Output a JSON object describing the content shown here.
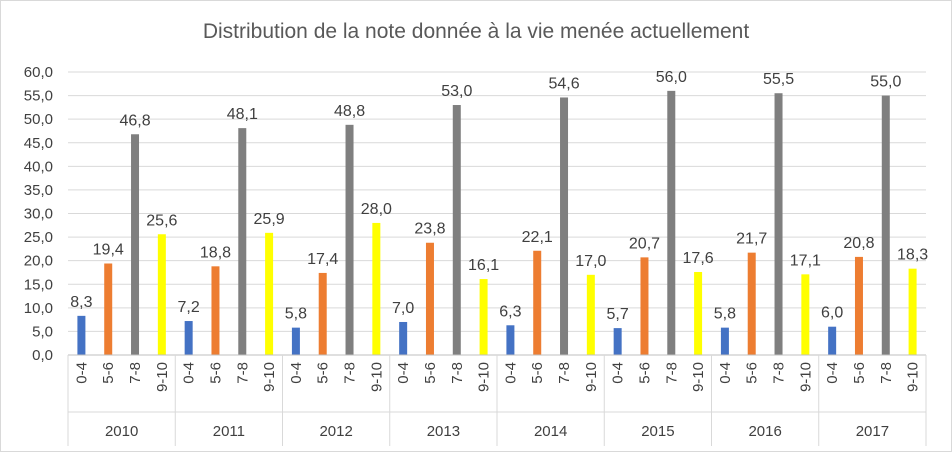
{
  "chart_data": {
    "type": "bar",
    "title": "Distribution de la note donnée à la vie menée actuellement",
    "xlabel": "",
    "ylabel": "",
    "ylim": [
      0,
      60
    ],
    "yticks": [
      "0,0",
      "5,0",
      "10,0",
      "15,0",
      "20,0",
      "25,0",
      "30,0",
      "35,0",
      "40,0",
      "45,0",
      "50,0",
      "55,0",
      "60,0"
    ],
    "grid": true,
    "legend": "none",
    "groups": [
      "2010",
      "2011",
      "2012",
      "2013",
      "2014",
      "2015",
      "2016",
      "2017"
    ],
    "categories": [
      "0-4",
      "5-6",
      "7-8",
      "9-10"
    ],
    "category_colors": [
      "#4472c4",
      "#ed7d31",
      "#7f7f7f",
      "#ffff00"
    ],
    "values": [
      [
        8.3,
        19.4,
        46.8,
        25.6
      ],
      [
        7.2,
        18.8,
        48.1,
        25.9
      ],
      [
        5.8,
        17.4,
        48.8,
        28.0
      ],
      [
        7.0,
        23.8,
        53.0,
        16.1
      ],
      [
        6.3,
        22.1,
        54.6,
        17.0
      ],
      [
        5.7,
        20.7,
        56.0,
        17.6
      ],
      [
        5.8,
        21.7,
        55.5,
        17.1
      ],
      [
        6.0,
        20.8,
        55.0,
        18.3
      ]
    ],
    "value_labels": [
      [
        "8,3",
        "19,4",
        "46,8",
        "25,6"
      ],
      [
        "7,2",
        "18,8",
        "48,1",
        "25,9"
      ],
      [
        "5,8",
        "17,4",
        "48,8",
        "28,0"
      ],
      [
        "7,0",
        "23,8",
        "53,0",
        "16,1"
      ],
      [
        "6,3",
        "22,1",
        "54,6",
        "17,0"
      ],
      [
        "5,7",
        "20,7",
        "56,0",
        "17,6"
      ],
      [
        "5,8",
        "21,7",
        "55,5",
        "17,1"
      ],
      [
        "6,0",
        "20,8",
        "55,0",
        "18,3"
      ]
    ]
  }
}
